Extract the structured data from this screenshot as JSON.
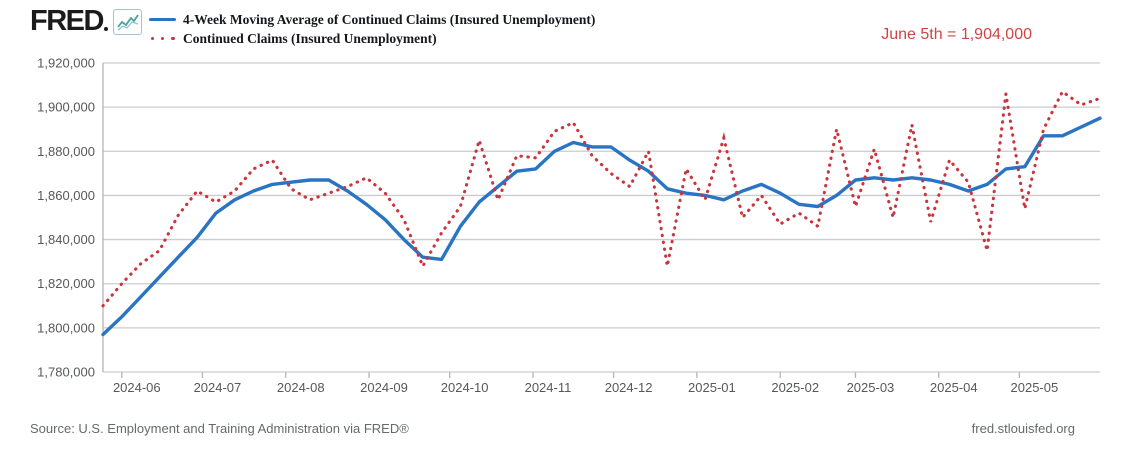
{
  "header": {
    "logo_text": "FRED",
    "logo_icon": "sparkline-chart-icon",
    "legend": [
      {
        "label": "4-Week Moving Average of Continued Claims (Insured Unemployment)",
        "style": "solid",
        "color": "#2a74c4"
      },
      {
        "label": "Continued Claims (Insured Unemployment)",
        "style": "dotted",
        "color": "#c9353e"
      }
    ],
    "annotation": {
      "text": "June 5th = 1,904,000",
      "color": "#cf4444"
    }
  },
  "footer": {
    "source": "Source: U.S. Employment and Training Administration via FRED®",
    "site": "fred.stlouisfed.org"
  },
  "chart_data": {
    "type": "line",
    "title": "",
    "xlabel": "",
    "ylabel": "",
    "grid": true,
    "legend_position": "top-left",
    "ylim": [
      1780000,
      1920000
    ],
    "y_tick_step": 20000,
    "y_tick_labels": [
      "1,780,000",
      "1,800,000",
      "1,820,000",
      "1,840,000",
      "1,860,000",
      "1,880,000",
      "1,900,000",
      "1,920,000"
    ],
    "x_start_date": "2024-05-25",
    "frequency": "weekly",
    "span_days": 371,
    "x_ticks": [
      {
        "label": "2024-06",
        "offset_days": 7
      },
      {
        "label": "2024-07",
        "offset_days": 37
      },
      {
        "label": "2024-08",
        "offset_days": 68
      },
      {
        "label": "2024-09",
        "offset_days": 99
      },
      {
        "label": "2024-10",
        "offset_days": 129
      },
      {
        "label": "2024-11",
        "offset_days": 160
      },
      {
        "label": "2024-12",
        "offset_days": 190
      },
      {
        "label": "2025-01",
        "offset_days": 221
      },
      {
        "label": "2025-02",
        "offset_days": 252
      },
      {
        "label": "2025-03",
        "offset_days": 280
      },
      {
        "label": "2025-04",
        "offset_days": 311
      },
      {
        "label": "2025-05",
        "offset_days": 341
      }
    ],
    "series": [
      {
        "name": "4-Week Moving Average of Continued Claims (Insured Unemployment)",
        "color": "#2a74c4",
        "style": "solid",
        "values": [
          1797000,
          1805000,
          1814000,
          1823000,
          1832000,
          1841000,
          1852000,
          1858000,
          1862000,
          1865000,
          1866000,
          1867000,
          1867000,
          1862000,
          1856000,
          1849000,
          1840000,
          1832000,
          1831000,
          1846000,
          1857000,
          1864000,
          1871000,
          1872000,
          1880000,
          1884000,
          1882000,
          1882000,
          1876000,
          1871000,
          1863000,
          1861000,
          1860000,
          1858000,
          1862000,
          1865000,
          1861000,
          1856000,
          1855000,
          1860000,
          1867000,
          1868000,
          1867000,
          1868000,
          1867000,
          1865000,
          1862000,
          1865000,
          1872000,
          1873000,
          1887000,
          1887000,
          1891000,
          1895000
        ]
      },
      {
        "name": "Continued Claims (Insured Unemployment)",
        "color": "#c9353e",
        "style": "dotted",
        "values": [
          1810000,
          1820000,
          1829000,
          1835000,
          1851000,
          1862000,
          1857000,
          1862000,
          1872000,
          1876000,
          1863000,
          1858000,
          1861000,
          1864000,
          1868000,
          1861000,
          1849000,
          1828000,
          1843000,
          1855000,
          1885000,
          1858000,
          1878000,
          1877000,
          1889000,
          1893000,
          1878000,
          1870000,
          1864000,
          1880000,
          1828000,
          1872000,
          1858000,
          1886000,
          1850000,
          1860000,
          1847000,
          1852000,
          1846000,
          1890000,
          1855000,
          1881000,
          1850000,
          1892000,
          1848000,
          1876000,
          1866000,
          1835000,
          1906000,
          1854000,
          1890000,
          1907000,
          1901000,
          1904000
        ]
      }
    ]
  }
}
